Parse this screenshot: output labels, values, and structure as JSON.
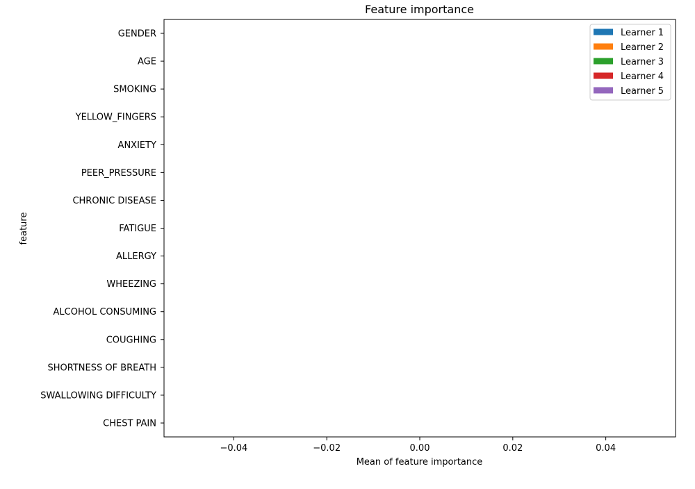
{
  "chart_data": {
    "type": "bar",
    "orientation": "horizontal",
    "title": "Feature importance",
    "xlabel": "Mean of feature importance",
    "ylabel": "feature",
    "xlim": [
      -0.055,
      0.055
    ],
    "x_ticks": [
      -0.04,
      -0.02,
      0.0,
      0.02,
      0.04
    ],
    "x_tick_labels": [
      "−0.04",
      "−0.02",
      "0.00",
      "0.02",
      "0.04"
    ],
    "categories": [
      "GENDER",
      "AGE",
      "SMOKING",
      "YELLOW_FINGERS",
      "ANXIETY",
      "PEER_PRESSURE",
      "CHRONIC DISEASE",
      "FATIGUE ",
      "ALLERGY ",
      "WHEEZING",
      "ALCOHOL CONSUMING",
      "COUGHING",
      "SHORTNESS OF BREATH",
      "SWALLOWING DIFFICULTY",
      "CHEST PAIN"
    ],
    "series": [
      {
        "name": "Learner 1",
        "color": "#1f77b4",
        "values": [
          0,
          0,
          0,
          0,
          0,
          0,
          0,
          0,
          0,
          0,
          0,
          0,
          0,
          0,
          0
        ]
      },
      {
        "name": "Learner 2",
        "color": "#ff7f0e",
        "values": [
          0,
          0,
          0,
          0,
          0,
          0,
          0,
          0,
          0,
          0,
          0,
          0,
          0,
          0,
          0
        ]
      },
      {
        "name": "Learner 3",
        "color": "#2ca02c",
        "values": [
          0,
          0,
          0,
          0,
          0,
          0,
          0,
          0,
          0,
          0,
          0,
          0,
          0,
          0,
          0
        ]
      },
      {
        "name": "Learner 4",
        "color": "#d62728",
        "values": [
          0,
          0,
          0,
          0,
          0,
          0,
          0,
          0,
          0,
          0,
          0,
          0,
          0,
          0,
          0
        ]
      },
      {
        "name": "Learner 5",
        "color": "#9467bd",
        "values": [
          0,
          0,
          0,
          0,
          0,
          0,
          0,
          0,
          0,
          0,
          0,
          0,
          0,
          0,
          0
        ]
      }
    ],
    "grid": false,
    "legend_position": "top-right"
  }
}
